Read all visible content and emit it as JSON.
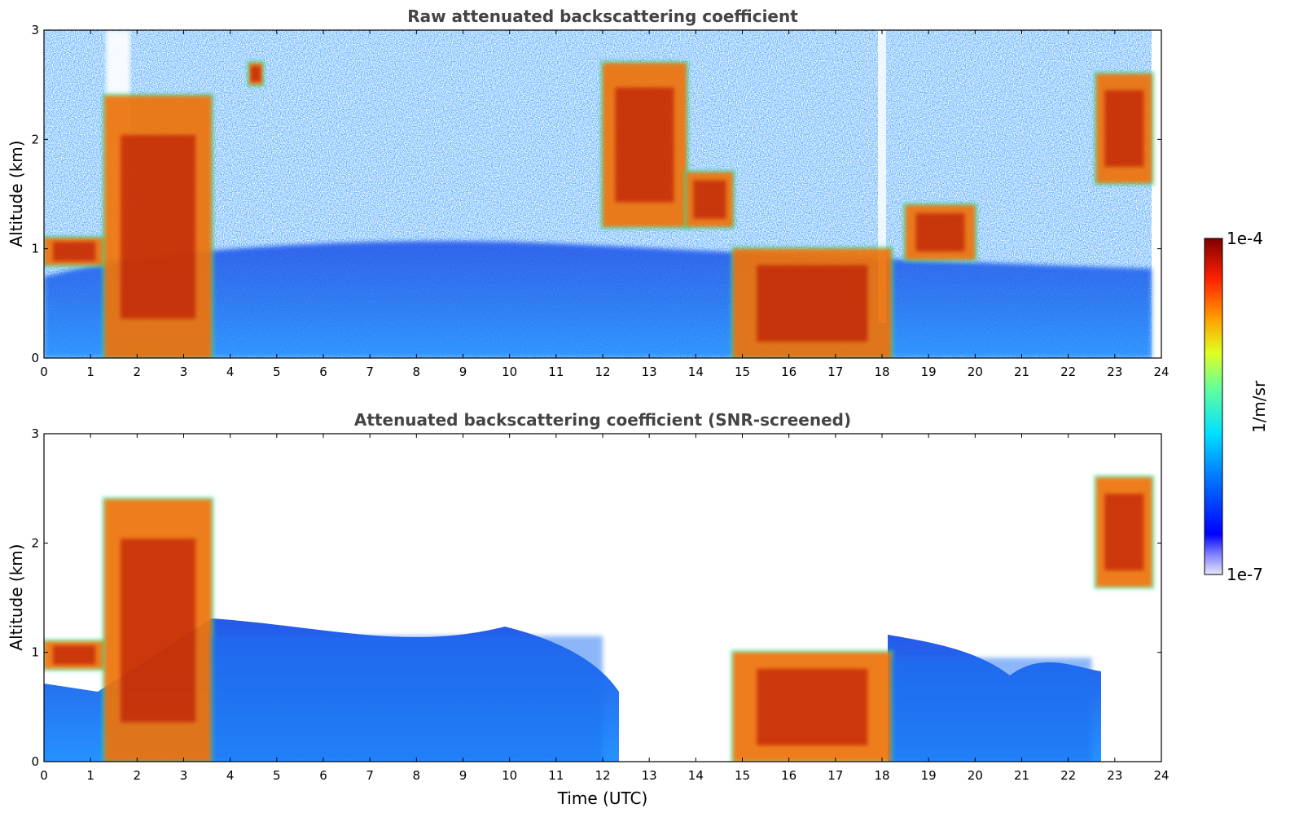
{
  "chart_data": [
    {
      "type": "heatmap",
      "title": "Raw attenuated backscattering coefficient",
      "xlabel": "",
      "ylabel": "Altitude (km)",
      "xlim": [
        0,
        24
      ],
      "ylim": [
        0,
        3
      ],
      "xticks": [
        "0",
        "1",
        "2",
        "3",
        "4",
        "5",
        "6",
        "7",
        "8",
        "9",
        "10",
        "11",
        "12",
        "13",
        "14",
        "15",
        "16",
        "17",
        "18",
        "19",
        "20",
        "21",
        "22",
        "23",
        "24"
      ],
      "yticks": [
        "0",
        "1",
        "2",
        "3"
      ],
      "grid": false,
      "features": [
        {
          "t": [
            0,
            1.3
          ],
          "z": [
            0.85,
            1.1
          ],
          "level": "high"
        },
        {
          "t": [
            1.3,
            3.6
          ],
          "z": [
            0,
            2.4
          ],
          "level": "high"
        },
        {
          "t": [
            4.4,
            4.7
          ],
          "z": [
            2.5,
            2.7
          ],
          "level": "high"
        },
        {
          "t": [
            12.0,
            13.8
          ],
          "z": [
            1.2,
            2.7
          ],
          "level": "high"
        },
        {
          "t": [
            13.8,
            14.8
          ],
          "z": [
            1.2,
            1.7
          ],
          "level": "high"
        },
        {
          "t": [
            14.8,
            18.2
          ],
          "z": [
            0,
            1.0
          ],
          "level": "high"
        },
        {
          "t": [
            18.5,
            20.0
          ],
          "z": [
            0.9,
            1.4
          ],
          "level": "high"
        },
        {
          "t": [
            22.6,
            23.8
          ],
          "z": [
            1.6,
            2.6
          ],
          "level": "high"
        }
      ]
    },
    {
      "type": "heatmap",
      "title": "Attenuated backscattering coefficient (SNR-screened)",
      "xlabel": "Time (UTC)",
      "ylabel": "Altitude (km)",
      "xlim": [
        0,
        24
      ],
      "ylim": [
        0,
        3
      ],
      "xticks": [
        "0",
        "1",
        "2",
        "3",
        "4",
        "5",
        "6",
        "7",
        "8",
        "9",
        "10",
        "11",
        "12",
        "13",
        "14",
        "15",
        "16",
        "17",
        "18",
        "19",
        "20",
        "21",
        "22",
        "23",
        "24"
      ],
      "yticks": [
        "0",
        "1",
        "2",
        "3"
      ],
      "grid": false,
      "features": [
        {
          "t": [
            0,
            1.3
          ],
          "z": [
            0.85,
            1.1
          ],
          "level": "high"
        },
        {
          "t": [
            1.3,
            3.6
          ],
          "z": [
            0,
            2.4
          ],
          "level": "high"
        },
        {
          "t": [
            3.6,
            12.0
          ],
          "z": [
            0,
            1.15
          ],
          "level": "low"
        },
        {
          "t": [
            14.8,
            18.2
          ],
          "z": [
            0,
            1.0
          ],
          "level": "high"
        },
        {
          "t": [
            18.2,
            22.5
          ],
          "z": [
            0,
            0.95
          ],
          "level": "low"
        },
        {
          "t": [
            22.6,
            23.8
          ],
          "z": [
            1.6,
            2.6
          ],
          "level": "high"
        }
      ]
    }
  ],
  "colorbar": {
    "label": "1/m/sr",
    "max_label": "1e-4",
    "min_label": "1e-7",
    "colormap": "jet",
    "scale": "log"
  }
}
